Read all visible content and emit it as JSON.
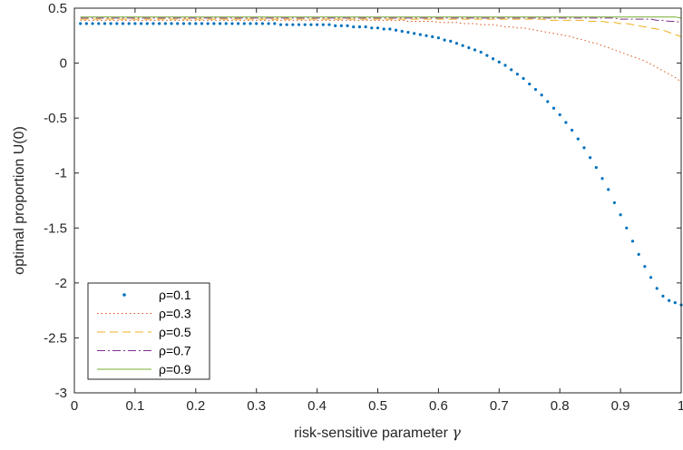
{
  "chart_data": {
    "type": "line",
    "title": "",
    "xlabel": "risk-sensitive parameter",
    "xlabel_symbol": "γ",
    "ylabel": "optimal proportion U(0)",
    "xlim": [
      0,
      1
    ],
    "ylim": [
      -3,
      0.5
    ],
    "x_ticks": [
      0,
      0.1,
      0.2,
      0.3,
      0.4,
      0.5,
      0.6,
      0.7,
      0.8,
      0.9,
      1
    ],
    "x_tick_labels": [
      "0",
      "0.1",
      "0.2",
      "0.3",
      "0.4",
      "0.5",
      "0.6",
      "0.7",
      "0.8",
      "0.9",
      "1"
    ],
    "y_ticks": [
      0.5,
      0,
      -0.5,
      -1,
      -1.5,
      -2,
      -2.5,
      -3
    ],
    "y_tick_labels": [
      "0.5",
      "0",
      "-0.5",
      "-1",
      "-1.5",
      "-2",
      "-2.5",
      "-3"
    ],
    "grid": false,
    "legend_position": "bottom-left",
    "x": [
      0.01,
      0.02,
      0.03,
      0.04,
      0.05,
      0.06,
      0.07,
      0.08,
      0.09,
      0.1,
      0.11,
      0.12,
      0.13,
      0.14,
      0.15,
      0.16,
      0.17,
      0.18,
      0.19,
      0.2,
      0.21,
      0.22,
      0.23,
      0.24,
      0.25,
      0.26,
      0.27,
      0.28,
      0.29,
      0.3,
      0.31,
      0.32,
      0.33,
      0.34,
      0.35,
      0.36,
      0.37,
      0.38,
      0.39,
      0.4,
      0.41,
      0.42,
      0.43,
      0.44,
      0.45,
      0.46,
      0.47,
      0.48,
      0.49,
      0.5,
      0.51,
      0.52,
      0.53,
      0.54,
      0.55,
      0.56,
      0.57,
      0.58,
      0.59,
      0.6,
      0.61,
      0.62,
      0.63,
      0.64,
      0.65,
      0.66,
      0.67,
      0.68,
      0.69,
      0.7,
      0.71,
      0.72,
      0.73,
      0.74,
      0.75,
      0.76,
      0.77,
      0.78,
      0.79,
      0.8,
      0.81,
      0.82,
      0.83,
      0.84,
      0.85,
      0.86,
      0.87,
      0.88,
      0.89,
      0.9,
      0.91,
      0.92,
      0.93,
      0.94,
      0.95,
      0.96,
      0.97,
      0.98,
      0.99,
      1.0
    ],
    "series": [
      {
        "name": "ρ=0.1",
        "style": "dots",
        "color": "#0072BD",
        "values": [
          0.36,
          0.36,
          0.36,
          0.36,
          0.36,
          0.36,
          0.36,
          0.36,
          0.36,
          0.36,
          0.36,
          0.36,
          0.36,
          0.36,
          0.36,
          0.36,
          0.36,
          0.36,
          0.36,
          0.36,
          0.36,
          0.36,
          0.36,
          0.36,
          0.36,
          0.36,
          0.36,
          0.36,
          0.36,
          0.36,
          0.36,
          0.36,
          0.36,
          0.35,
          0.35,
          0.35,
          0.35,
          0.35,
          0.35,
          0.35,
          0.35,
          0.35,
          0.34,
          0.34,
          0.34,
          0.33,
          0.33,
          0.33,
          0.32,
          0.32,
          0.31,
          0.31,
          0.3,
          0.29,
          0.28,
          0.27,
          0.26,
          0.25,
          0.24,
          0.23,
          0.21,
          0.2,
          0.18,
          0.16,
          0.14,
          0.12,
          0.1,
          0.07,
          0.04,
          0.01,
          -0.02,
          -0.06,
          -0.1,
          -0.14,
          -0.19,
          -0.24,
          -0.29,
          -0.35,
          -0.41,
          -0.47,
          -0.54,
          -0.61,
          -0.69,
          -0.77,
          -0.86,
          -0.95,
          -1.05,
          -1.15,
          -1.27,
          -1.38,
          -1.5,
          -1.62,
          -1.74,
          -1.85,
          -1.95,
          -2.05,
          -2.12,
          -2.16,
          -2.18,
          -2.2
        ]
      },
      {
        "name": "ρ=0.3",
        "style": "dotted",
        "color": "#D95319",
        "values": [
          0.39,
          0.39,
          0.39,
          0.39,
          0.39,
          0.39,
          0.39,
          0.39,
          0.39,
          0.39,
          0.39,
          0.39,
          0.39,
          0.39,
          0.39,
          0.39,
          0.39,
          0.39,
          0.39,
          0.39,
          0.39,
          0.39,
          0.39,
          0.39,
          0.39,
          0.39,
          0.39,
          0.39,
          0.39,
          0.39,
          0.39,
          0.39,
          0.39,
          0.39,
          0.39,
          0.39,
          0.39,
          0.39,
          0.39,
          0.39,
          0.39,
          0.39,
          0.39,
          0.39,
          0.39,
          0.39,
          0.39,
          0.39,
          0.39,
          0.39,
          0.39,
          0.39,
          0.39,
          0.39,
          0.38,
          0.38,
          0.38,
          0.38,
          0.38,
          0.37,
          0.37,
          0.37,
          0.37,
          0.36,
          0.36,
          0.36,
          0.35,
          0.35,
          0.35,
          0.34,
          0.33,
          0.33,
          0.32,
          0.32,
          0.31,
          0.3,
          0.29,
          0.28,
          0.27,
          0.26,
          0.25,
          0.24,
          0.22,
          0.21,
          0.19,
          0.18,
          0.16,
          0.14,
          0.12,
          0.1,
          0.08,
          0.06,
          0.04,
          0.02,
          -0.01,
          -0.04,
          -0.07,
          -0.1,
          -0.13,
          -0.17
        ]
      },
      {
        "name": "ρ=0.5",
        "style": "dashed",
        "color": "#EDB120",
        "values": [
          0.4,
          0.4,
          0.4,
          0.4,
          0.4,
          0.4,
          0.4,
          0.4,
          0.4,
          0.4,
          0.4,
          0.4,
          0.4,
          0.4,
          0.4,
          0.4,
          0.4,
          0.4,
          0.4,
          0.4,
          0.4,
          0.4,
          0.4,
          0.4,
          0.4,
          0.4,
          0.4,
          0.4,
          0.4,
          0.4,
          0.4,
          0.4,
          0.4,
          0.4,
          0.4,
          0.4,
          0.4,
          0.4,
          0.4,
          0.4,
          0.4,
          0.4,
          0.4,
          0.4,
          0.4,
          0.4,
          0.4,
          0.4,
          0.4,
          0.4,
          0.4,
          0.4,
          0.4,
          0.4,
          0.4,
          0.4,
          0.4,
          0.4,
          0.4,
          0.4,
          0.4,
          0.4,
          0.4,
          0.4,
          0.4,
          0.4,
          0.4,
          0.4,
          0.4,
          0.4,
          0.4,
          0.4,
          0.4,
          0.4,
          0.4,
          0.4,
          0.4,
          0.39,
          0.39,
          0.39,
          0.39,
          0.39,
          0.39,
          0.39,
          0.38,
          0.38,
          0.38,
          0.37,
          0.37,
          0.36,
          0.36,
          0.35,
          0.34,
          0.33,
          0.32,
          0.31,
          0.3,
          0.28,
          0.26,
          0.24
        ]
      },
      {
        "name": "ρ=0.7",
        "style": "dashdot",
        "color": "#7E2F8E",
        "values": [
          0.41,
          0.41,
          0.41,
          0.41,
          0.41,
          0.41,
          0.41,
          0.41,
          0.41,
          0.41,
          0.41,
          0.41,
          0.41,
          0.41,
          0.41,
          0.41,
          0.41,
          0.41,
          0.41,
          0.41,
          0.41,
          0.41,
          0.41,
          0.41,
          0.41,
          0.41,
          0.41,
          0.41,
          0.41,
          0.41,
          0.41,
          0.41,
          0.41,
          0.41,
          0.41,
          0.41,
          0.41,
          0.41,
          0.41,
          0.41,
          0.41,
          0.41,
          0.41,
          0.41,
          0.41,
          0.41,
          0.41,
          0.41,
          0.41,
          0.41,
          0.41,
          0.41,
          0.41,
          0.41,
          0.41,
          0.41,
          0.41,
          0.41,
          0.41,
          0.41,
          0.41,
          0.41,
          0.41,
          0.41,
          0.41,
          0.41,
          0.41,
          0.41,
          0.41,
          0.41,
          0.41,
          0.41,
          0.41,
          0.41,
          0.41,
          0.41,
          0.41,
          0.41,
          0.41,
          0.41,
          0.41,
          0.41,
          0.41,
          0.41,
          0.41,
          0.41,
          0.41,
          0.41,
          0.41,
          0.4,
          0.4,
          0.4,
          0.4,
          0.4,
          0.4,
          0.39,
          0.39,
          0.38,
          0.38,
          0.37
        ]
      },
      {
        "name": "ρ=0.9",
        "style": "solid",
        "color": "#77AC30",
        "values": [
          0.42,
          0.42,
          0.42,
          0.42,
          0.42,
          0.42,
          0.42,
          0.42,
          0.42,
          0.42,
          0.42,
          0.42,
          0.42,
          0.42,
          0.42,
          0.42,
          0.42,
          0.42,
          0.42,
          0.42,
          0.42,
          0.42,
          0.42,
          0.42,
          0.42,
          0.42,
          0.42,
          0.42,
          0.42,
          0.42,
          0.42,
          0.42,
          0.42,
          0.42,
          0.42,
          0.42,
          0.42,
          0.42,
          0.42,
          0.42,
          0.42,
          0.42,
          0.42,
          0.42,
          0.42,
          0.42,
          0.42,
          0.42,
          0.42,
          0.42,
          0.42,
          0.42,
          0.42,
          0.42,
          0.42,
          0.42,
          0.42,
          0.42,
          0.42,
          0.42,
          0.42,
          0.42,
          0.42,
          0.42,
          0.42,
          0.42,
          0.42,
          0.42,
          0.42,
          0.42,
          0.42,
          0.42,
          0.42,
          0.42,
          0.42,
          0.42,
          0.42,
          0.42,
          0.42,
          0.42,
          0.42,
          0.42,
          0.42,
          0.42,
          0.42,
          0.42,
          0.42,
          0.42,
          0.42,
          0.42,
          0.42,
          0.42,
          0.42,
          0.42,
          0.42,
          0.42,
          0.42,
          0.42,
          0.42,
          0.41
        ]
      }
    ]
  }
}
